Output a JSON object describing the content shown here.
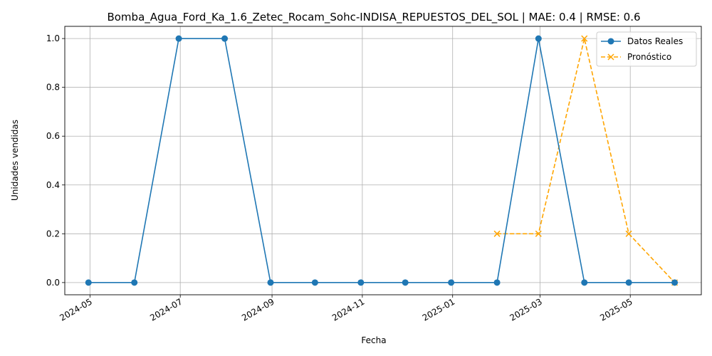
{
  "chart_data": {
    "type": "line",
    "title": "Bomba_Agua_Ford_Ka_1.6_Zetec_Rocam_Sohc-INDISA_REPUESTOS_DEL_SOL | MAE: 0.4 | RMSE: 0.6",
    "xlabel": "Fecha",
    "ylabel": "Unidades vendidas",
    "grid": true,
    "legend_position": "top-right",
    "x_ticks": [
      "2024-05",
      "2024-07",
      "2024-09",
      "2024-11",
      "2025-01",
      "2025-03",
      "2025-05"
    ],
    "y_ticks": [
      "0.0",
      "0.2",
      "0.4",
      "0.6",
      "0.8",
      "1.0"
    ],
    "ylim": [
      -0.05,
      1.05
    ],
    "xlim": [
      "2024-04-14",
      "2025-06-18"
    ],
    "series": [
      {
        "name": "Datos Reales",
        "color": "#1f77b4",
        "style": "solid",
        "marker": "circle",
        "x": [
          "2024-04-30",
          "2024-05-31",
          "2024-06-30",
          "2024-07-31",
          "2024-08-31",
          "2024-09-30",
          "2024-10-31",
          "2024-11-30",
          "2024-12-31",
          "2025-01-31",
          "2025-02-28",
          "2025-03-31",
          "2025-04-30",
          "2025-05-31"
        ],
        "y": [
          0,
          0,
          1,
          1,
          0,
          0,
          0,
          0,
          0,
          0,
          1,
          0,
          0,
          0
        ]
      },
      {
        "name": "Pronóstico",
        "color": "#ffa500",
        "style": "dashed",
        "marker": "x",
        "x": [
          "2025-01-31",
          "2025-02-28",
          "2025-03-31",
          "2025-04-30",
          "2025-05-31"
        ],
        "y": [
          0.2,
          0.2,
          1.0,
          0.2,
          0.0
        ]
      }
    ]
  }
}
